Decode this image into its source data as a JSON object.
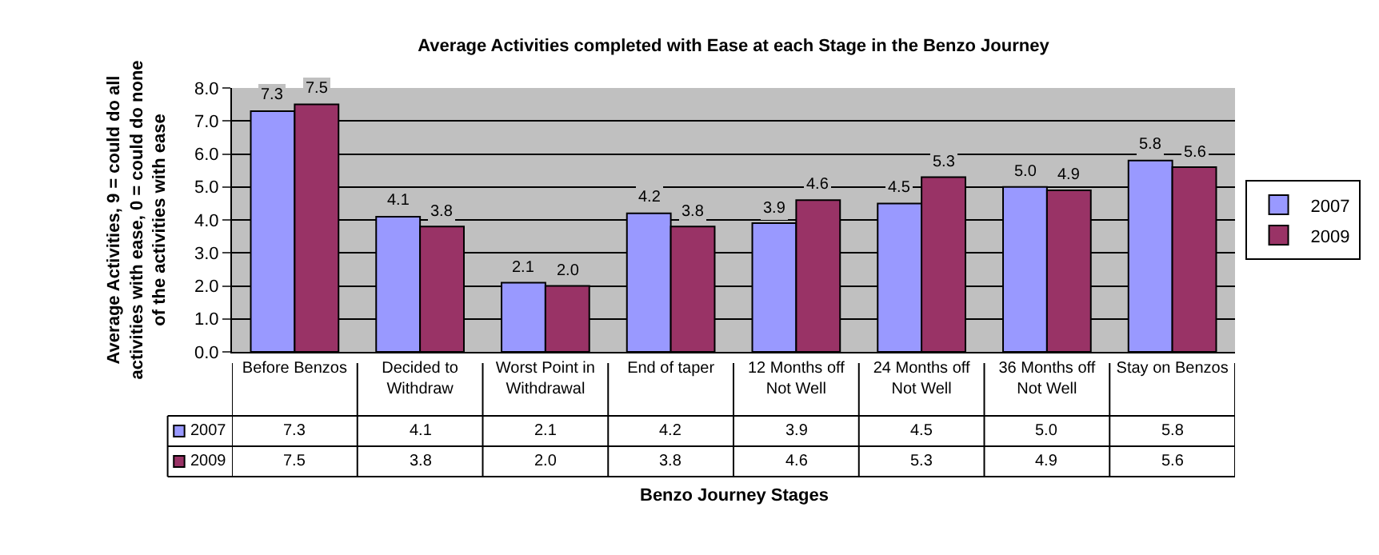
{
  "chart_data": {
    "type": "bar",
    "title": "Average Activities completed with Ease at each Stage in the Benzo Journey",
    "xlabel": "Benzo Journey Stages",
    "ylabel": "Average Activities, 9 = could do all activities with ease, 0 = could do none of the activities with ease",
    "categories": [
      "Before Benzos",
      "Decided to Withdraw",
      "Worst Point in Withdrawal",
      "End of taper",
      "12 Months off Not Well",
      "24 Months off Not Well",
      "36 Months off Not Well",
      "Stay on Benzos"
    ],
    "series": [
      {
        "name": "2007",
        "color": "#9999ff",
        "values": [
          7.3,
          4.1,
          2.1,
          4.2,
          3.9,
          4.5,
          5.0,
          5.8
        ],
        "value_labels": [
          "7.3",
          "4.1",
          "2.1",
          "4.2",
          "3.9",
          "4.5",
          "5.0",
          "5.8"
        ]
      },
      {
        "name": "2009",
        "color": "#993366",
        "values": [
          7.5,
          3.8,
          2.0,
          3.8,
          4.6,
          5.3,
          4.9,
          5.6
        ],
        "value_labels": [
          "7.5",
          "3.8",
          "2.0",
          "3.8",
          "4.6",
          "5.3",
          "4.9",
          "5.6"
        ]
      }
    ],
    "ylim": [
      0,
      8
    ],
    "yticks": [
      {
        "value": 0,
        "label": "0.0"
      },
      {
        "value": 1,
        "label": "1.0"
      },
      {
        "value": 2,
        "label": "2.0"
      },
      {
        "value": 3,
        "label": "3.0"
      },
      {
        "value": 4,
        "label": "4.0"
      },
      {
        "value": 5,
        "label": "5.0"
      },
      {
        "value": 6,
        "label": "6.0"
      },
      {
        "value": 7,
        "label": "7.0"
      },
      {
        "value": 8,
        "label": "8.0"
      }
    ],
    "grid": "y",
    "legend": "right"
  }
}
